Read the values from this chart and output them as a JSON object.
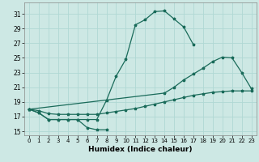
{
  "xlabel": "Humidex (Indice chaleur)",
  "background_color": "#cde8e4",
  "grid_color": "#b0d8d4",
  "line_color": "#1a6b5a",
  "xlim": [
    -0.5,
    23.5
  ],
  "ylim": [
    14.5,
    32.5
  ],
  "xticks": [
    0,
    1,
    2,
    3,
    4,
    5,
    6,
    7,
    8,
    9,
    10,
    11,
    12,
    13,
    14,
    15,
    16,
    17,
    18,
    19,
    20,
    21,
    22,
    23
  ],
  "yticks": [
    15,
    17,
    19,
    21,
    23,
    25,
    27,
    29,
    31
  ],
  "line_peak_x": [
    0,
    1,
    2,
    3,
    4,
    5,
    6,
    7,
    8,
    9,
    10,
    11,
    12,
    13,
    14,
    15,
    16,
    17
  ],
  "line_peak_y": [
    18.0,
    17.5,
    16.6,
    16.6,
    16.6,
    16.6,
    16.6,
    16.6,
    19.2,
    22.5,
    24.8,
    29.5,
    30.2,
    31.3,
    31.4,
    30.3,
    29.2,
    26.8
  ],
  "line_zigzag_x": [
    0,
    1,
    2,
    3,
    4,
    5,
    6,
    7,
    8
  ],
  "line_zigzag_y": [
    18.0,
    17.5,
    16.6,
    16.6,
    16.6,
    16.6,
    15.5,
    15.2,
    15.2
  ],
  "line_diag_x": [
    0,
    14,
    15,
    16,
    17,
    18,
    19,
    20,
    21,
    22,
    23
  ],
  "line_diag_y": [
    18.0,
    20.2,
    21.0,
    22.0,
    22.8,
    23.6,
    24.5,
    25.1,
    25.0,
    23.0,
    20.8
  ],
  "line_flat_x": [
    0,
    1,
    2,
    3,
    4,
    5,
    6,
    7,
    8,
    9,
    10,
    11,
    12,
    13,
    14,
    15,
    16,
    17,
    18,
    19,
    20,
    21,
    22,
    23
  ],
  "line_flat_y": [
    18.0,
    17.8,
    17.4,
    17.3,
    17.3,
    17.3,
    17.3,
    17.3,
    17.5,
    17.7,
    17.9,
    18.1,
    18.4,
    18.7,
    19.0,
    19.3,
    19.6,
    19.9,
    20.1,
    20.3,
    20.4,
    20.5,
    20.5,
    20.5
  ]
}
